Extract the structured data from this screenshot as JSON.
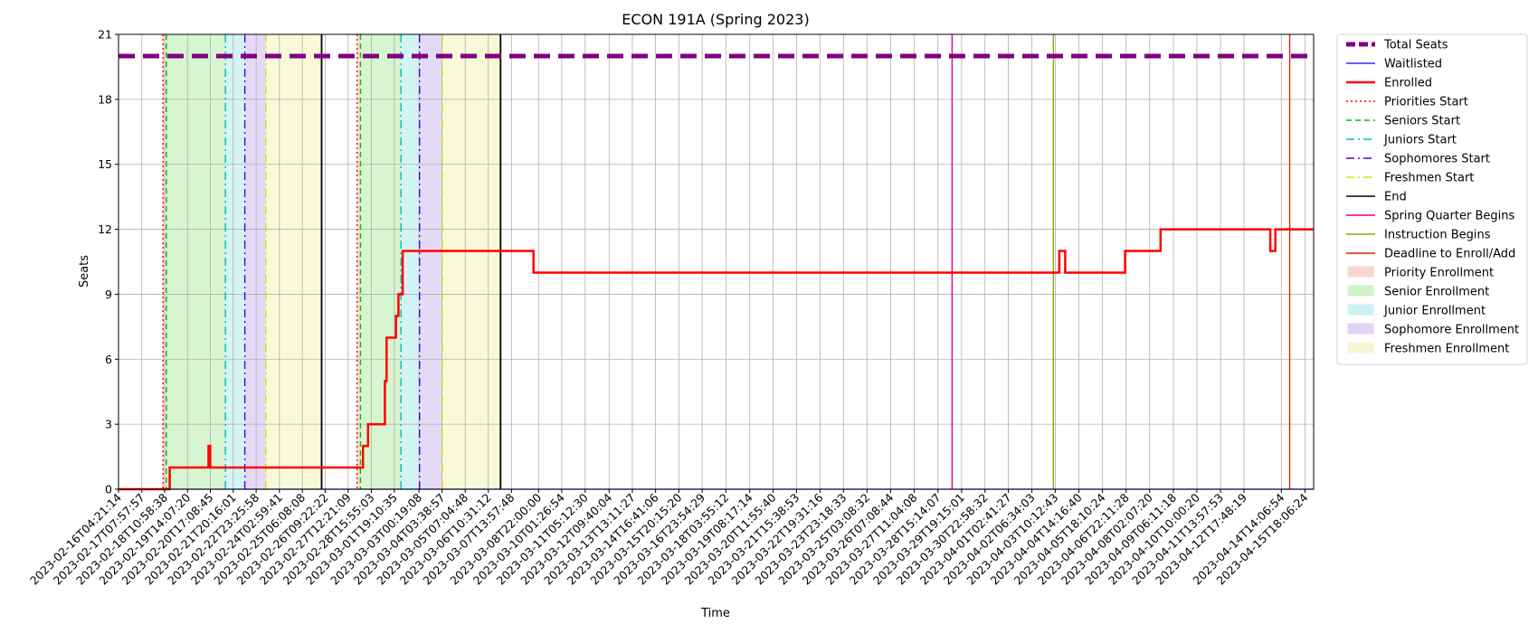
{
  "chart_data": {
    "type": "line",
    "title": "ECON 191A (Spring 2023)",
    "xlabel": "Time",
    "ylabel": "Seats",
    "ylim": [
      0,
      21
    ],
    "yticks": [
      0,
      3,
      6,
      9,
      12,
      15,
      18,
      21
    ],
    "xlim": [
      "2023-02-16T04:21:14",
      "2023-04-16T04:21:14"
    ],
    "grid": true,
    "legend_position": "outside-right",
    "xtick_labels": [
      "2023-02-16T04:21:14",
      "2023-02-17T07:57:57",
      "2023-02-18T10:58:38",
      "2023-02-19T14:07:20",
      "2023-02-20T17:08:45",
      "2023-02-21T20:16:01",
      "2023-02-22T23:25:58",
      "2023-02-24T02:59:41",
      "2023-02-25T06:08:08",
      "2023-02-26T09:22:22",
      "2023-02-27T12:21:09",
      "2023-02-28T15:55:03",
      "2023-03-01T19:10:35",
      "2023-03-03T00:19:08",
      "2023-03-04T03:38:57",
      "2023-03-05T07:04:48",
      "2023-03-06T10:31:12",
      "2023-03-07T13:57:48",
      "2023-03-08T22:00:00",
      "2023-03-10T01:26:54",
      "2023-03-11T05:12:30",
      "2023-03-12T09:40:04",
      "2023-03-13T13:11:27",
      "2023-03-14T16:41:06",
      "2023-03-15T20:15:20",
      "2023-03-16T23:54:29",
      "2023-03-18T03:55:12",
      "2023-03-19T08:17:14",
      "2023-03-20T11:55:40",
      "2023-03-21T15:38:53",
      "2023-03-22T19:31:16",
      "2023-03-23T23:18:33",
      "2023-03-25T03:08:32",
      "2023-03-26T07:08:44",
      "2023-03-27T11:04:08",
      "2023-03-28T15:14:07",
      "2023-03-29T19:15:01",
      "2023-03-30T22:58:32",
      "2023-04-01T02:41:27",
      "2023-04-02T06:34:03",
      "2023-04-03T10:12:43",
      "2023-04-04T14:16:40",
      "2023-04-05T18:10:24",
      "2023-04-06T22:11:28",
      "2023-04-08T02:07:20",
      "2023-04-09T06:11:18",
      "2023-04-10T10:00:20",
      "2023-04-11T13:57:53",
      "2023-04-12T17:48:19",
      "2023-04-14T14:06:54",
      "2023-04-15T18:06:24"
    ],
    "series": [
      {
        "name": "Total Seats",
        "color": "#800080",
        "style": "dashed",
        "points": [
          [
            "2023-02-16T04:21:14",
            20
          ],
          [
            "2023-04-16T04:21:14",
            20
          ]
        ]
      },
      {
        "name": "Waitlisted",
        "color": "#0000ff",
        "style": "solid",
        "points": [
          [
            "2023-02-16T04:21:14",
            0
          ],
          [
            "2023-04-16T04:21:14",
            0
          ]
        ]
      },
      {
        "name": "Enrolled",
        "color": "#ff0000",
        "style": "step",
        "points": [
          [
            "2023-02-16T04:21:14",
            0
          ],
          [
            "2023-02-18T17:00:00",
            1
          ],
          [
            "2023-02-20T15:00:00",
            2
          ],
          [
            "2023-02-20T17:00:00",
            1
          ],
          [
            "2023-02-28T06:00:00",
            2
          ],
          [
            "2023-02-28T12:00:00",
            3
          ],
          [
            "2023-03-01T08:00:00",
            5
          ],
          [
            "2023-03-01T10:00:00",
            7
          ],
          [
            "2023-03-01T21:00:00",
            8
          ],
          [
            "2023-03-02T00:00:00",
            9
          ],
          [
            "2023-03-02T05:00:00",
            11
          ],
          [
            "2023-03-08T16:00:00",
            10
          ],
          [
            "2023-04-03T15:00:00",
            11
          ],
          [
            "2023-04-03T22:00:00",
            10
          ],
          [
            "2023-04-06T21:00:00",
            11
          ],
          [
            "2023-04-08T15:00:00",
            12
          ],
          [
            "2023-04-14T01:00:00",
            11
          ],
          [
            "2023-04-14T07:00:00",
            12
          ],
          [
            "2023-04-16T04:21:14",
            12
          ]
        ]
      }
    ],
    "event_lines": [
      {
        "name": "Priorities Start",
        "color": "#ff0000",
        "style": "dotted",
        "x": [
          "2023-02-18T09:00:00",
          "2023-02-27T23:00:00"
        ]
      },
      {
        "name": "Seniors Start",
        "color": "#00bb00",
        "style": "dashed",
        "x": [
          "2023-02-18T13:00:00",
          "2023-02-28T03:00:00"
        ]
      },
      {
        "name": "Juniors Start",
        "color": "#00bbbb",
        "style": "dashdot",
        "x": [
          "2023-02-21T11:00:00",
          "2023-03-02T03:00:00"
        ]
      },
      {
        "name": "Sophomores Start",
        "color": "#5500cc",
        "style": "dashdot",
        "x": [
          "2023-02-22T10:00:00",
          "2023-03-03T01:00:00"
        ]
      },
      {
        "name": "Freshmen Start",
        "color": "#dddd00",
        "style": "dashdot",
        "x": [
          "2023-02-23T11:00:00",
          "2023-03-04T04:00:00"
        ]
      },
      {
        "name": "End",
        "color": "#000000",
        "style": "solid",
        "x": [
          "2023-02-26T05:00:00",
          "2023-03-07T01:00:00"
        ]
      },
      {
        "name": "Spring Quarter Begins",
        "color": "#e6007e",
        "style": "solid",
        "x": [
          "2023-03-29T08:00:00"
        ]
      },
      {
        "name": "Instruction Begins",
        "color": "#88aa00",
        "style": "solid",
        "x": [
          "2023-04-03T08:00:00"
        ]
      },
      {
        "name": "Deadline to Enroll/Add",
        "color": "#dd2200",
        "style": "solid",
        "x": [
          "2023-04-15T00:00:00"
        ]
      }
    ],
    "periods": [
      {
        "name": "Priority Enrollment",
        "color": "#f4c7b8",
        "ranges": [
          [
            "2023-02-18T09:00:00",
            "2023-02-18T13:00:00"
          ],
          [
            "2023-02-27T23:00:00",
            "2023-02-28T03:00:00"
          ]
        ]
      },
      {
        "name": "Senior Enrollment",
        "color": "#bdefb0",
        "ranges": [
          [
            "2023-02-18T13:00:00",
            "2023-02-21T11:00:00"
          ],
          [
            "2023-02-28T03:00:00",
            "2023-03-02T03:00:00"
          ]
        ]
      },
      {
        "name": "Junior Enrollment",
        "color": "#b6ecef",
        "ranges": [
          [
            "2023-02-21T11:00:00",
            "2023-02-22T10:00:00"
          ],
          [
            "2023-03-02T03:00:00",
            "2023-03-03T01:00:00"
          ]
        ]
      },
      {
        "name": "Sophomore Enrollment",
        "color": "#d2c2f2",
        "ranges": [
          [
            "2023-02-22T10:00:00",
            "2023-02-23T11:00:00"
          ],
          [
            "2023-03-03T01:00:00",
            "2023-03-04T04:00:00"
          ]
        ]
      },
      {
        "name": "Freshmen Enrollment",
        "color": "#f5f5c2",
        "ranges": [
          [
            "2023-02-23T11:00:00",
            "2023-02-26T05:00:00"
          ],
          [
            "2023-03-04T04:00:00",
            "2023-03-07T01:00:00"
          ]
        ]
      }
    ]
  }
}
